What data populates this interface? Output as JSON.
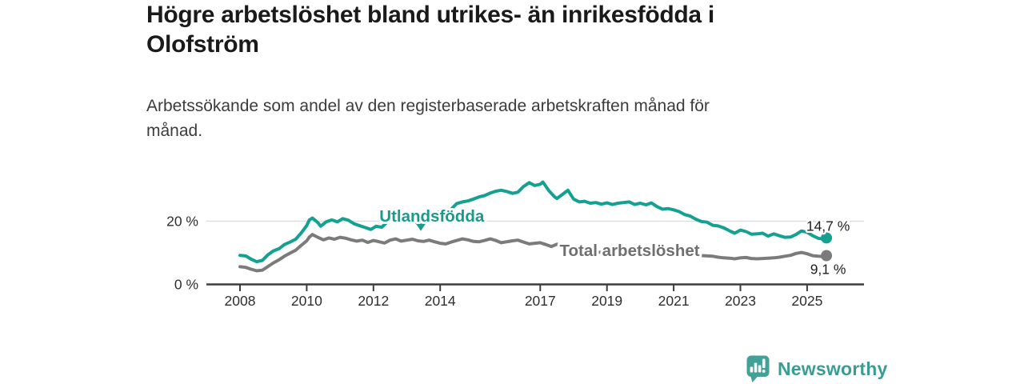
{
  "page": {
    "background": "#ffffff"
  },
  "header": {
    "title": "Högre arbetslöshet bland utrikes- än inrikesfödda i Olofström",
    "subtitle": "Arbetssökande som andel av den registerbaserade arbetskraften månad för månad."
  },
  "chart_data": {
    "type": "line",
    "title": "Högre arbetslöshet bland utrikes- än inrikesfödda i Olofström",
    "subtitle": "Arbetssökande som andel av den registerbaserade arbetskraften månad för månad.",
    "unit": "%",
    "grid": "horizontal-only",
    "xlim": [
      2007.0,
      2026.7
    ],
    "ylim": [
      0,
      38
    ],
    "x_ticks": [
      {
        "value": 2008,
        "label": "2008"
      },
      {
        "value": 2010,
        "label": "2010"
      },
      {
        "value": 2012,
        "label": "2012"
      },
      {
        "value": 2014,
        "label": "2014"
      },
      {
        "value": 2017,
        "label": "2017"
      },
      {
        "value": 2019,
        "label": "2019"
      },
      {
        "value": 2021,
        "label": "2021"
      },
      {
        "value": 2023,
        "label": "2023"
      },
      {
        "value": 2025,
        "label": "2025"
      }
    ],
    "y_ticks": [
      {
        "value": 0,
        "label": "0 %"
      },
      {
        "value": 20,
        "label": "20 %"
      }
    ],
    "colors": {
      "grid": "#dadada",
      "axis": "#3d3d3d",
      "value_label": "#1f1f1f"
    },
    "series": [
      {
        "name": "Utlandsfödda",
        "color": "#15a192",
        "label_color": "#179b8d",
        "end_label": "14,7 %",
        "end_value": 14.7,
        "end_label_position": "above",
        "label_annotation": {
          "text": "Utlandsfödda",
          "text_x": 2013.75,
          "text_y": 19.9,
          "caret_x": 2013.42,
          "caret_y": 18.2
        },
        "points": [
          [
            2008.0,
            9.2
          ],
          [
            2008.17,
            9.0
          ],
          [
            2008.33,
            8.0
          ],
          [
            2008.5,
            7.2
          ],
          [
            2008.67,
            7.6
          ],
          [
            2008.83,
            9.3
          ],
          [
            2009.0,
            10.6
          ],
          [
            2009.17,
            11.3
          ],
          [
            2009.33,
            12.6
          ],
          [
            2009.5,
            13.4
          ],
          [
            2009.67,
            14.3
          ],
          [
            2009.83,
            16.2
          ],
          [
            2010.0,
            18.6
          ],
          [
            2010.08,
            20.4
          ],
          [
            2010.17,
            21.0
          ],
          [
            2010.33,
            19.6
          ],
          [
            2010.42,
            18.4
          ],
          [
            2010.58,
            19.8
          ],
          [
            2010.75,
            20.4
          ],
          [
            2010.92,
            19.8
          ],
          [
            2011.08,
            20.8
          ],
          [
            2011.25,
            20.3
          ],
          [
            2011.42,
            19.2
          ],
          [
            2011.58,
            18.6
          ],
          [
            2011.75,
            18.0
          ],
          [
            2011.92,
            17.4
          ],
          [
            2012.08,
            18.4
          ],
          [
            2012.25,
            18.1
          ],
          [
            2012.42,
            19.8
          ],
          [
            2012.5,
            21.6
          ],
          [
            2012.67,
            20.9
          ],
          [
            2012.83,
            21.3
          ],
          [
            2013.0,
            20.9
          ],
          [
            2013.17,
            20.3
          ],
          [
            2013.33,
            19.3
          ],
          [
            2013.5,
            20.1
          ],
          [
            2013.67,
            21.4
          ],
          [
            2013.83,
            22.5
          ],
          [
            2014.0,
            23.0
          ],
          [
            2014.17,
            23.3
          ],
          [
            2014.33,
            23.8
          ],
          [
            2014.5,
            25.6
          ],
          [
            2014.67,
            26.1
          ],
          [
            2014.83,
            26.4
          ],
          [
            2015.0,
            27.0
          ],
          [
            2015.17,
            27.7
          ],
          [
            2015.33,
            28.1
          ],
          [
            2015.5,
            28.9
          ],
          [
            2015.67,
            29.5
          ],
          [
            2015.83,
            29.8
          ],
          [
            2016.0,
            29.4
          ],
          [
            2016.17,
            28.8
          ],
          [
            2016.33,
            29.2
          ],
          [
            2016.5,
            31.0
          ],
          [
            2016.67,
            32.2
          ],
          [
            2016.83,
            31.3
          ],
          [
            2017.0,
            31.7
          ],
          [
            2017.08,
            32.4
          ],
          [
            2017.25,
            29.8
          ],
          [
            2017.42,
            27.8
          ],
          [
            2017.5,
            27.2
          ],
          [
            2017.67,
            28.5
          ],
          [
            2017.83,
            29.8
          ],
          [
            2018.0,
            27.0
          ],
          [
            2018.17,
            26.1
          ],
          [
            2018.33,
            26.3
          ],
          [
            2018.5,
            25.7
          ],
          [
            2018.67,
            25.9
          ],
          [
            2018.83,
            25.4
          ],
          [
            2019.0,
            25.8
          ],
          [
            2019.17,
            25.3
          ],
          [
            2019.33,
            25.7
          ],
          [
            2019.5,
            25.9
          ],
          [
            2019.67,
            26.1
          ],
          [
            2019.83,
            25.3
          ],
          [
            2020.0,
            25.7
          ],
          [
            2020.17,
            25.2
          ],
          [
            2020.33,
            25.8
          ],
          [
            2020.5,
            24.6
          ],
          [
            2020.67,
            23.8
          ],
          [
            2020.83,
            24.0
          ],
          [
            2021.0,
            23.6
          ],
          [
            2021.17,
            23.0
          ],
          [
            2021.33,
            22.1
          ],
          [
            2021.5,
            21.6
          ],
          [
            2021.67,
            20.6
          ],
          [
            2021.83,
            19.9
          ],
          [
            2022.0,
            19.7
          ],
          [
            2022.17,
            18.7
          ],
          [
            2022.33,
            18.5
          ],
          [
            2022.5,
            17.9
          ],
          [
            2022.67,
            17.0
          ],
          [
            2022.83,
            16.2
          ],
          [
            2023.0,
            17.2
          ],
          [
            2023.17,
            16.7
          ],
          [
            2023.33,
            15.9
          ],
          [
            2023.5,
            16.0
          ],
          [
            2023.67,
            16.2
          ],
          [
            2023.83,
            15.3
          ],
          [
            2024.0,
            16.0
          ],
          [
            2024.17,
            15.4
          ],
          [
            2024.33,
            14.9
          ],
          [
            2024.5,
            15.0
          ],
          [
            2024.67,
            15.8
          ],
          [
            2024.83,
            16.9
          ],
          [
            2025.0,
            16.5
          ],
          [
            2025.17,
            15.4
          ],
          [
            2025.33,
            14.6
          ],
          [
            2025.5,
            14.3
          ],
          [
            2025.58,
            14.7
          ]
        ]
      },
      {
        "name": "Total arbetslöshet",
        "color": "#7b7b7b",
        "label_color": "#6f6f6f",
        "end_label": "9,1 %",
        "end_value": 9.1,
        "end_label_position": "below",
        "label_annotation": {
          "text": "Total arbetslöshet",
          "text_x": 2019.68,
          "text_y": 9.0
        },
        "points": [
          [
            2008.0,
            5.6
          ],
          [
            2008.17,
            5.4
          ],
          [
            2008.33,
            4.8
          ],
          [
            2008.5,
            4.3
          ],
          [
            2008.67,
            4.5
          ],
          [
            2008.83,
            5.6
          ],
          [
            2009.0,
            6.8
          ],
          [
            2009.17,
            7.8
          ],
          [
            2009.33,
            8.9
          ],
          [
            2009.5,
            9.9
          ],
          [
            2009.67,
            10.8
          ],
          [
            2009.83,
            12.3
          ],
          [
            2010.0,
            13.8
          ],
          [
            2010.08,
            15.0
          ],
          [
            2010.17,
            15.8
          ],
          [
            2010.33,
            14.9
          ],
          [
            2010.5,
            14.1
          ],
          [
            2010.67,
            14.7
          ],
          [
            2010.83,
            14.3
          ],
          [
            2011.0,
            14.9
          ],
          [
            2011.17,
            14.6
          ],
          [
            2011.33,
            14.1
          ],
          [
            2011.5,
            13.7
          ],
          [
            2011.67,
            14.0
          ],
          [
            2011.83,
            13.3
          ],
          [
            2012.0,
            13.9
          ],
          [
            2012.17,
            13.5
          ],
          [
            2012.33,
            13.1
          ],
          [
            2012.5,
            14.0
          ],
          [
            2012.67,
            14.4
          ],
          [
            2012.83,
            13.7
          ],
          [
            2013.0,
            14.0
          ],
          [
            2013.17,
            14.3
          ],
          [
            2013.33,
            13.8
          ],
          [
            2013.5,
            13.6
          ],
          [
            2013.67,
            14.0
          ],
          [
            2013.83,
            13.5
          ],
          [
            2014.0,
            13.0
          ],
          [
            2014.17,
            12.8
          ],
          [
            2014.33,
            13.4
          ],
          [
            2014.5,
            13.9
          ],
          [
            2014.67,
            14.4
          ],
          [
            2014.83,
            14.1
          ],
          [
            2015.0,
            13.6
          ],
          [
            2015.17,
            13.5
          ],
          [
            2015.33,
            13.9
          ],
          [
            2015.5,
            14.4
          ],
          [
            2015.67,
            13.9
          ],
          [
            2015.83,
            13.2
          ],
          [
            2016.0,
            13.5
          ],
          [
            2016.17,
            13.8
          ],
          [
            2016.33,
            14.0
          ],
          [
            2016.5,
            13.4
          ],
          [
            2016.67,
            12.8
          ],
          [
            2016.83,
            13.0
          ],
          [
            2017.0,
            13.2
          ],
          [
            2017.17,
            12.6
          ],
          [
            2017.33,
            12.0
          ],
          [
            2017.5,
            12.7
          ],
          [
            2017.67,
            12.3
          ],
          [
            2017.83,
            11.6
          ],
          [
            2018.0,
            11.2
          ],
          [
            2018.17,
            10.9
          ],
          [
            2018.33,
            10.7
          ],
          [
            2018.5,
            10.5
          ],
          [
            2018.75,
            10.2
          ],
          [
            2019.0,
            10.1
          ],
          [
            2019.25,
            9.9
          ],
          [
            2019.5,
            9.8
          ],
          [
            2019.75,
            9.7
          ],
          [
            2020.0,
            10.0
          ],
          [
            2020.25,
            10.5
          ],
          [
            2020.5,
            10.7
          ],
          [
            2020.75,
            10.4
          ],
          [
            2021.0,
            10.0
          ],
          [
            2021.25,
            9.7
          ],
          [
            2021.5,
            9.4
          ],
          [
            2021.75,
            9.2
          ],
          [
            2022.0,
            9.0
          ],
          [
            2022.17,
            8.9
          ],
          [
            2022.33,
            8.6
          ],
          [
            2022.5,
            8.4
          ],
          [
            2022.67,
            8.3
          ],
          [
            2022.83,
            8.1
          ],
          [
            2023.0,
            8.4
          ],
          [
            2023.17,
            8.5
          ],
          [
            2023.33,
            8.2
          ],
          [
            2023.5,
            8.1
          ],
          [
            2023.67,
            8.2
          ],
          [
            2023.83,
            8.3
          ],
          [
            2024.0,
            8.4
          ],
          [
            2024.17,
            8.6
          ],
          [
            2024.33,
            8.9
          ],
          [
            2024.5,
            9.2
          ],
          [
            2024.67,
            9.8
          ],
          [
            2024.83,
            10.1
          ],
          [
            2025.0,
            9.7
          ],
          [
            2025.17,
            9.1
          ],
          [
            2025.33,
            8.9
          ],
          [
            2025.5,
            8.8
          ],
          [
            2025.58,
            9.1
          ]
        ]
      }
    ]
  },
  "footer": {
    "brand": "Newsworthy",
    "logo_icon": "newsworthy-bars-speech-bubble-icon",
    "brand_color": "#3a9c92",
    "icon_color": "#42a097"
  }
}
